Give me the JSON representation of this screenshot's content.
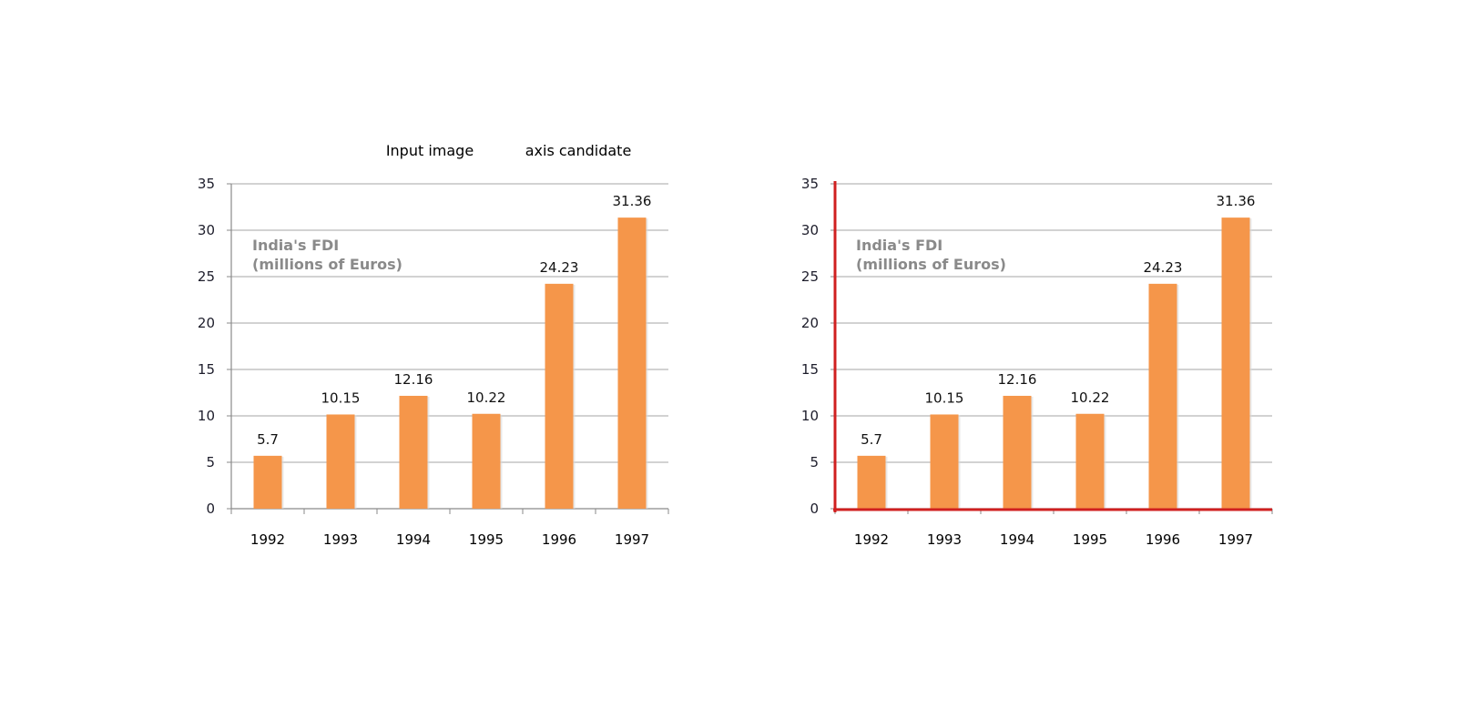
{
  "panels": [
    {
      "title": "Input image"
    },
    {
      "title": "axis candidate"
    }
  ],
  "colors": {
    "bar": "#f5964a",
    "grid": "#b8b8b8",
    "axis_highlight": "#d02020"
  },
  "chart_data": [
    {
      "type": "bar",
      "title_lines": [
        "India's FDI",
        "(millions of Euros)"
      ],
      "categories": [
        "1992",
        "1993",
        "1994",
        "1995",
        "1996",
        "1997"
      ],
      "values": [
        5.7,
        10.15,
        12.16,
        10.22,
        24.23,
        31.36
      ],
      "data_labels": [
        "5.7",
        "10.15",
        "12.16",
        "10.22",
        "24.23",
        "31.36"
      ],
      "yticks": [
        "0",
        "5",
        "10",
        "15",
        "20",
        "25",
        "30",
        "35"
      ],
      "ylim": [
        0,
        35
      ],
      "grid": true
    },
    {
      "type": "bar",
      "title_lines": [
        "India's FDI",
        "(millions of Euros)"
      ],
      "categories": [
        "1992",
        "1993",
        "1994",
        "1995",
        "1996",
        "1997"
      ],
      "values": [
        5.7,
        10.15,
        12.16,
        10.22,
        24.23,
        31.36
      ],
      "data_labels": [
        "5.7",
        "10.15",
        "12.16",
        "10.22",
        "24.23",
        "31.36"
      ],
      "yticks": [
        "0",
        "5",
        "10",
        "15",
        "20",
        "25",
        "30",
        "35"
      ],
      "ylim": [
        0,
        35
      ],
      "grid": true,
      "axis_highlighted": true
    }
  ]
}
